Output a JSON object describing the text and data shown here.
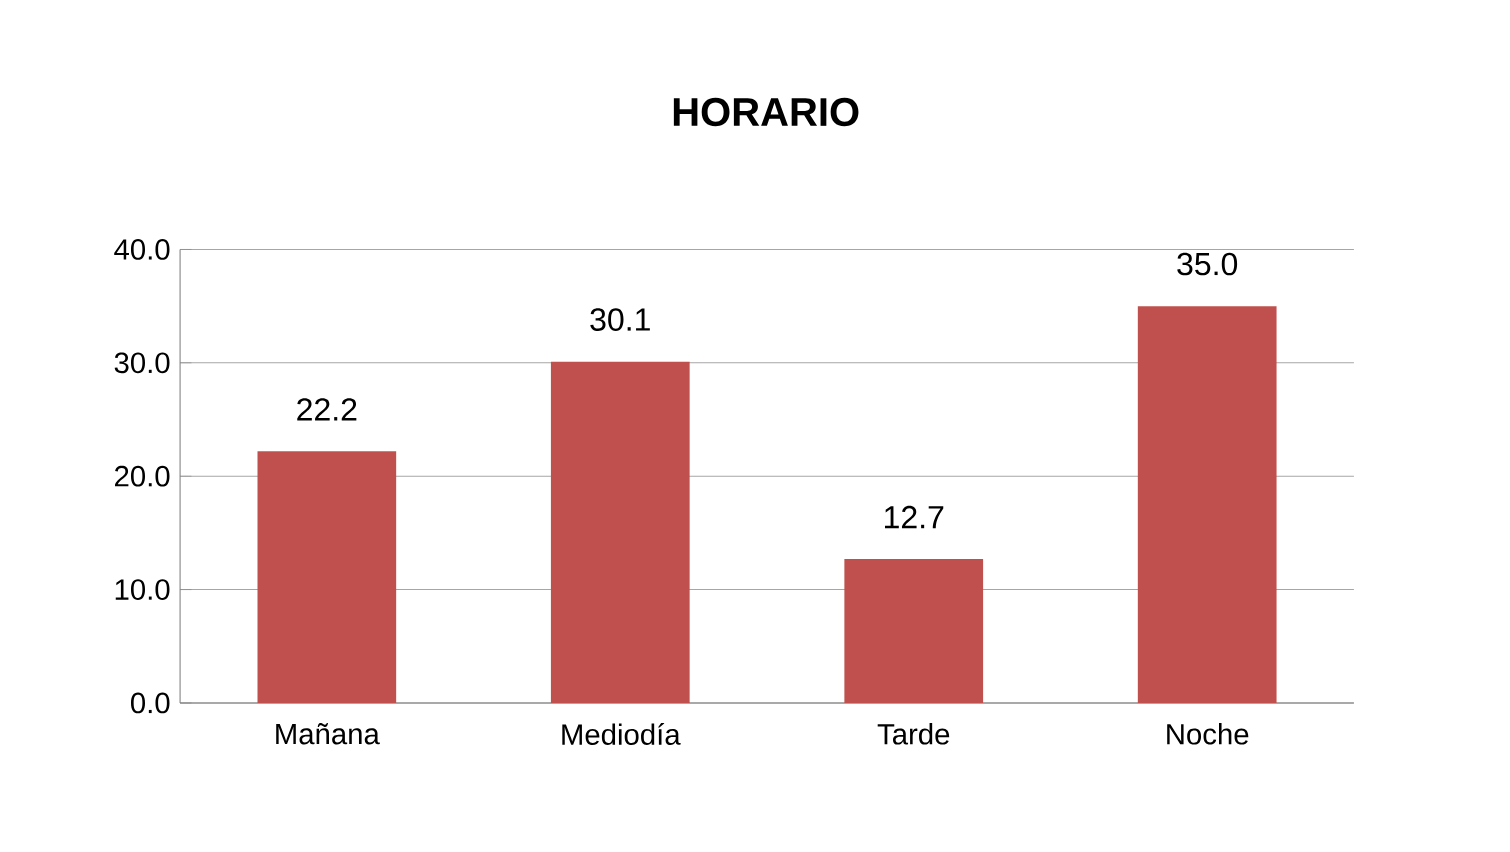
{
  "chart_data": {
    "type": "bar",
    "title": "HORARIO",
    "categories": [
      "Mañana",
      "Mediodía",
      "Tarde",
      "Noche"
    ],
    "values": [
      22.2,
      30.1,
      12.7,
      35.0
    ],
    "value_labels": [
      "22.2",
      "30.1",
      "12.7",
      "35.0"
    ],
    "color": "#c0504d",
    "ylim": [
      0,
      40
    ],
    "yticks": [
      {
        "value": 0,
        "label": "0.0"
      },
      {
        "value": 10,
        "label": "10.0"
      },
      {
        "value": 20,
        "label": "20.0"
      },
      {
        "value": 30,
        "label": "30.0"
      },
      {
        "value": 40,
        "label": "40.0"
      }
    ],
    "grid": "y"
  }
}
